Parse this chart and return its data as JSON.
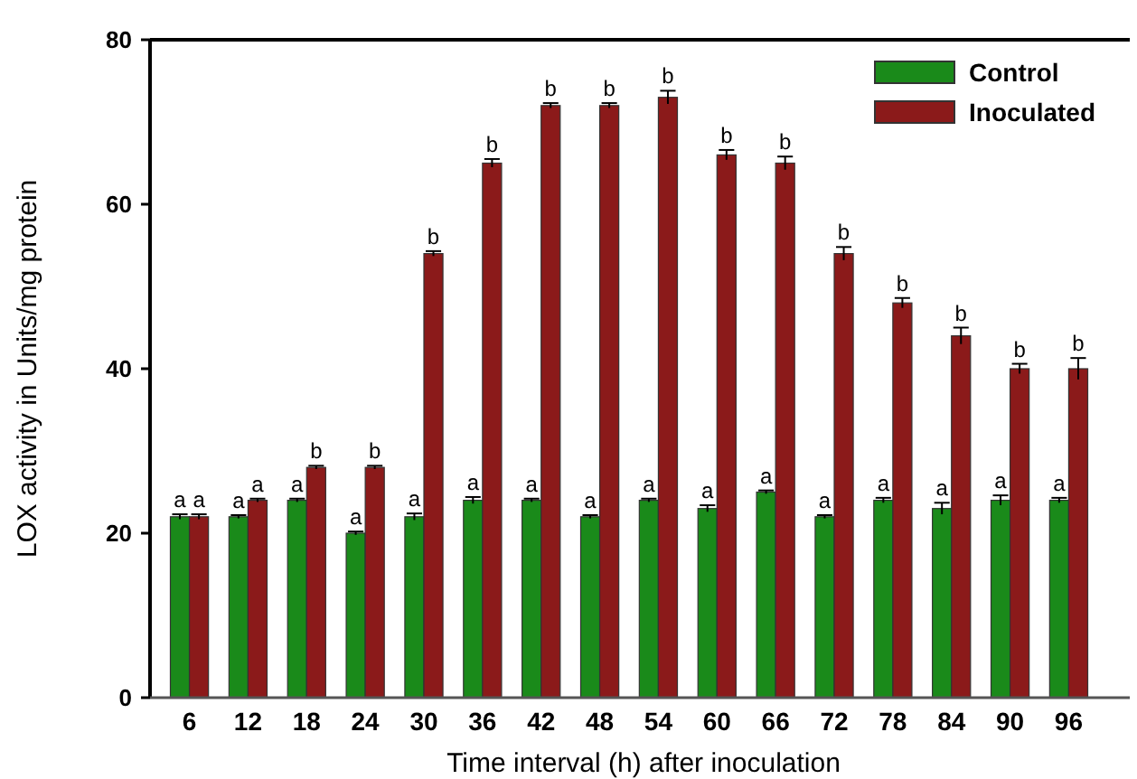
{
  "chart_data": {
    "type": "bar",
    "xlabel": "Time interval (h) after inoculation",
    "ylabel": "LOX activity in Units/mg protein",
    "categories": [
      "6",
      "12",
      "18",
      "24",
      "30",
      "36",
      "42",
      "48",
      "54",
      "60",
      "66",
      "72",
      "78",
      "84",
      "90",
      "96"
    ],
    "series": [
      {
        "name": "Control",
        "color": "#1a8a1a",
        "values": [
          22,
          22,
          24,
          20,
          22,
          24,
          24,
          22,
          24,
          23,
          25,
          22,
          24,
          23,
          24,
          24
        ],
        "errors": [
          0.3,
          0.2,
          0.2,
          0.2,
          0.4,
          0.4,
          0.2,
          0.2,
          0.2,
          0.4,
          0.2,
          0.2,
          0.3,
          0.7,
          0.6,
          0.3
        ],
        "value_labels": [
          "a",
          "a",
          "a",
          "a",
          "a",
          "a",
          "a",
          "a",
          "a",
          "a",
          "a",
          "a",
          "a",
          "a",
          "a",
          "a"
        ]
      },
      {
        "name": "Inoculated",
        "color": "#8b1a1a",
        "values": [
          22,
          24,
          28,
          28,
          54,
          65,
          72,
          72,
          73,
          66,
          65,
          54,
          48,
          44,
          40,
          40
        ],
        "errors": [
          0.3,
          0.2,
          0.2,
          0.2,
          0.3,
          0.5,
          0.3,
          0.3,
          0.8,
          0.6,
          0.8,
          0.8,
          0.6,
          1.0,
          0.6,
          1.3
        ],
        "value_labels": [
          "a",
          "a",
          "b",
          "b",
          "b",
          "b",
          "b",
          "b",
          "b",
          "b",
          "b",
          "b",
          "b",
          "b",
          "b",
          "b"
        ]
      }
    ],
    "ylim": [
      0,
      80
    ],
    "yticks": [
      0,
      20,
      40,
      60,
      80
    ],
    "grid": false,
    "legend": "top right"
  }
}
